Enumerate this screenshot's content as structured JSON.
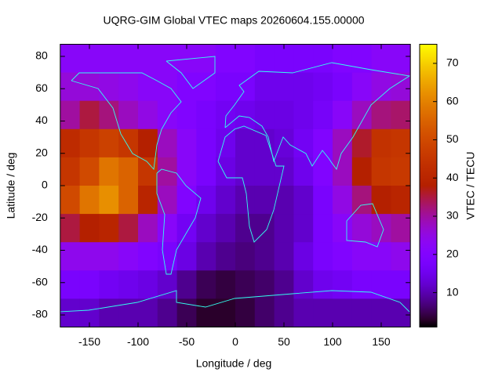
{
  "chart_data": {
    "type": "heatmap",
    "title": "UQRG-GIM Global VTEC maps 20260604.155.00000",
    "x_label": "Longitude / deg",
    "y_label": "Latitude / deg",
    "colorbar_label": "VTEC / TECU",
    "palette": "rgbformulae 7,5,15",
    "xlim": [
      -180,
      180
    ],
    "ylim": [
      -87.5,
      87.5
    ],
    "zlim": [
      1,
      75
    ],
    "xticks": [
      -150,
      -100,
      -50,
      0,
      50,
      100,
      150
    ],
    "yticks": [
      -80,
      -60,
      -40,
      -20,
      0,
      20,
      40,
      60,
      80
    ],
    "zticks": [
      10,
      20,
      30,
      40,
      50,
      60,
      70
    ],
    "x": [
      -170,
      -150,
      -130,
      -110,
      -90,
      -70,
      -50,
      -30,
      -10,
      10,
      30,
      50,
      70,
      90,
      110,
      130,
      150,
      170
    ],
    "y": [
      78.75,
      61.25,
      43.75,
      26.25,
      8.75,
      -8.75,
      -26.25,
      -43.75,
      -61.25,
      -78.75
    ],
    "z": [
      [
        22,
        22,
        22,
        22,
        22,
        22,
        22,
        22,
        20,
        20,
        18,
        18,
        18,
        18,
        20,
        20,
        22,
        22
      ],
      [
        26,
        26,
        25,
        24,
        22,
        22,
        20,
        20,
        18,
        18,
        15,
        15,
        15,
        16,
        18,
        22,
        25,
        26
      ],
      [
        30,
        35,
        32,
        28,
        25,
        22,
        20,
        18,
        16,
        15,
        14,
        14,
        15,
        17,
        22,
        28,
        32,
        33
      ],
      [
        42,
        45,
        48,
        45,
        38,
        28,
        22,
        18,
        15,
        12,
        12,
        13,
        16,
        20,
        28,
        36,
        44,
        45
      ],
      [
        45,
        50,
        58,
        55,
        45,
        30,
        22,
        18,
        14,
        12,
        12,
        12,
        15,
        20,
        28,
        38,
        45,
        46
      ],
      [
        50,
        58,
        62,
        55,
        40,
        28,
        20,
        15,
        12,
        10,
        10,
        10,
        12,
        18,
        25,
        32,
        38,
        40
      ],
      [
        35,
        38,
        40,
        35,
        28,
        22,
        16,
        12,
        10,
        8,
        8,
        10,
        12,
        18,
        22,
        26,
        28,
        30
      ],
      [
        24,
        24,
        24,
        22,
        20,
        18,
        14,
        10,
        8,
        7,
        8,
        10,
        14,
        18,
        20,
        22,
        22,
        24
      ],
      [
        18,
        18,
        16,
        15,
        14,
        12,
        8,
        5,
        4,
        5,
        6,
        8,
        12,
        15,
        16,
        18,
        18,
        18
      ],
      [
        12,
        12,
        10,
        10,
        10,
        8,
        5,
        3,
        3,
        4,
        6,
        8,
        10,
        10,
        10,
        10,
        10,
        10
      ]
    ]
  }
}
